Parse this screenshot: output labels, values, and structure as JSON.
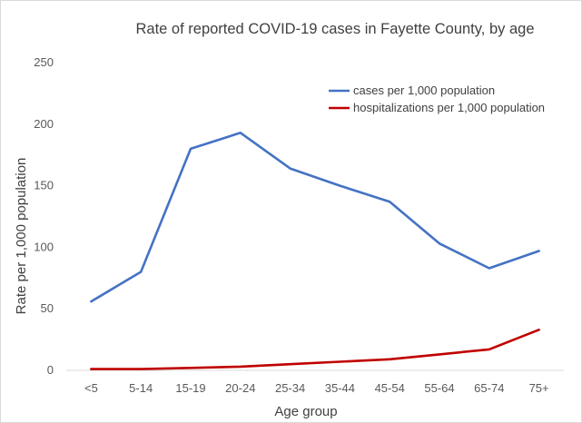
{
  "chart_data": {
    "type": "line",
    "title": "Rate of reported COVID-19 cases in Fayette County, by age",
    "xlabel": "Age group",
    "ylabel": "Rate per 1,000 population",
    "categories": [
      "<5",
      "5-14",
      "15-19",
      "20-24",
      "25-34",
      "35-44",
      "45-54",
      "55-64",
      "65-74",
      "75+"
    ],
    "yticks": [
      "0",
      "50",
      "100",
      "150",
      "200",
      "250"
    ],
    "ylim": [
      0,
      250
    ],
    "grid": false,
    "legend_position": "top-right",
    "series": [
      {
        "name": "cases per 1,000 population",
        "color": "#4472c4",
        "values": [
          56,
          80,
          180,
          193,
          164,
          150,
          137,
          103,
          83,
          97
        ]
      },
      {
        "name": "hospitalizations per 1,000 population",
        "color": "#c00000",
        "values": [
          1,
          1,
          2,
          3,
          5,
          7,
          9,
          13,
          17,
          33
        ]
      }
    ]
  }
}
